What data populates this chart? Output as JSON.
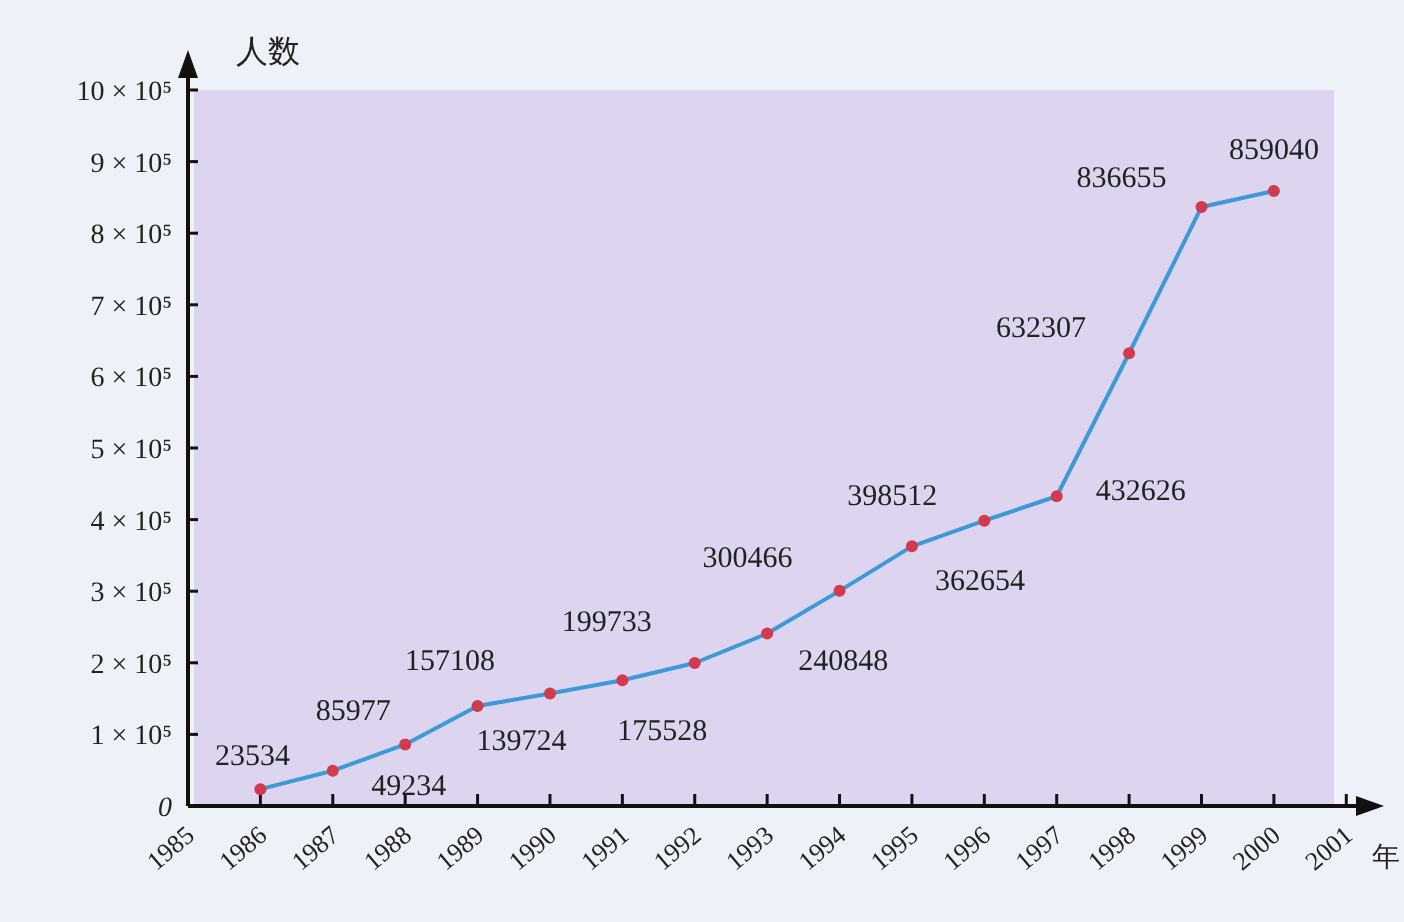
{
  "chart_data": {
    "type": "line",
    "ylabel": "人数",
    "xlabel": "年",
    "x": [
      1986,
      1987,
      1988,
      1989,
      1990,
      1991,
      1992,
      1993,
      1994,
      1995,
      1996,
      1997,
      1998,
      1999,
      2000
    ],
    "series": [
      {
        "color": "#3d9ad6",
        "colors": [
          "#d23a4e",
          "#d23a4e",
          "#d23a4e",
          "#d23a4e",
          "#d23a4e",
          "#d23a4e",
          "#d23a4e",
          "#d23a4e",
          "#d23a4e",
          "#d23a4e",
          "#d23a4e",
          "#d23a4e",
          "#d23a4e",
          "#d23a4e",
          "#d23a4e"
        ],
        "values": [
          23534,
          49234,
          85977,
          139724,
          157108,
          175528,
          199733,
          240848,
          300466,
          362654,
          398512,
          432626,
          632307,
          836655,
          859040
        ],
        "value_labels": [
          "23534",
          "49234",
          "85977",
          "139724",
          "157108",
          "175528",
          "199733",
          "240848",
          "300466",
          "362654",
          "398512",
          "432626",
          "632307",
          "836655",
          "859040"
        ]
      }
    ],
    "xlim": [
      1985,
      2001.3
    ],
    "xticks": [
      1985,
      1986,
      1987,
      1988,
      1989,
      1990,
      1991,
      1992,
      1993,
      1994,
      1995,
      1996,
      1997,
      1998,
      1999,
      2000,
      2001
    ],
    "ylim": [
      0,
      1000000
    ],
    "yticks": [
      {
        "value": 0,
        "label": "0"
      },
      {
        "value": 100000,
        "label": "1 × 10⁵"
      },
      {
        "value": 200000,
        "label": "2 × 10⁵"
      },
      {
        "value": 300000,
        "label": "3 × 10⁵"
      },
      {
        "value": 400000,
        "label": "4 × 10⁵"
      },
      {
        "value": 500000,
        "label": "5 × 10⁵"
      },
      {
        "value": 600000,
        "label": "6 × 10⁵"
      },
      {
        "value": 700000,
        "label": "7 × 10⁵"
      },
      {
        "value": 800000,
        "label": "8 × 10⁵"
      },
      {
        "value": 900000,
        "label": "9 × 10⁵"
      },
      {
        "value": 1000000,
        "label": "10 × 10⁵"
      }
    ],
    "marker": "circle",
    "grid": false
  }
}
